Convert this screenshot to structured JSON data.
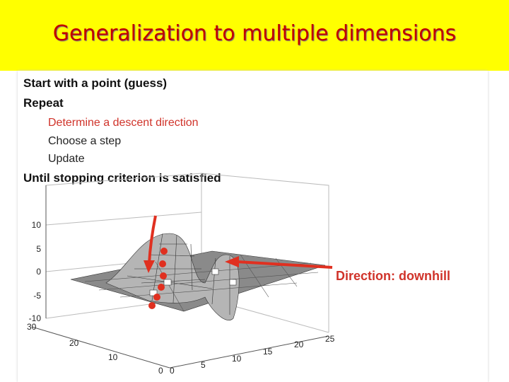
{
  "header": {
    "title": "Generalization to multiple dimensions"
  },
  "bullets": [
    {
      "text": "Start with a point (guess)",
      "level": 1
    },
    {
      "text": "Repeat",
      "level": 1
    },
    {
      "text": "Determine a descent direction",
      "level": 2
    },
    {
      "text": "Choose a step",
      "level": 2
    },
    {
      "text": "Update",
      "level": 2
    },
    {
      "text": "Until stopping criterion is satisfied",
      "level": 1
    }
  ],
  "figure": {
    "annotation": "Direction: downhill",
    "zticks": [
      10,
      5,
      0,
      -5,
      -10
    ],
    "yticks": [
      30,
      20,
      10,
      0
    ],
    "xticks": [
      0,
      5,
      10,
      15,
      20,
      25
    ]
  }
}
